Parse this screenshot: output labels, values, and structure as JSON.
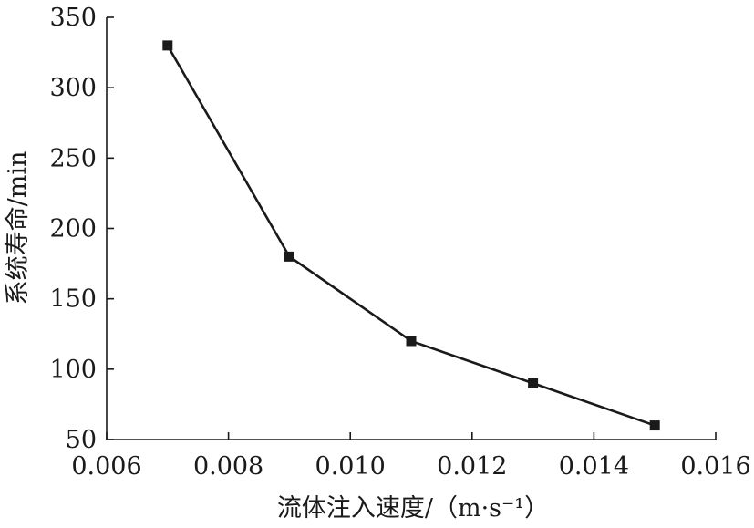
{
  "chart_data": {
    "type": "line",
    "xlabel": "流体注入速度/（m·s⁻¹）",
    "ylabel": "系统寿命/min",
    "xlim": [
      0.006,
      0.016
    ],
    "ylim": [
      50,
      350
    ],
    "x_ticks": [
      0.006,
      0.008,
      0.01,
      0.012,
      0.014,
      0.016
    ],
    "x_tick_labels": [
      "0.006",
      "0.008",
      "0.010",
      "0.012",
      "0.014",
      "0.016"
    ],
    "y_ticks": [
      50,
      100,
      150,
      200,
      250,
      300,
      350
    ],
    "y_tick_labels": [
      "50",
      "100",
      "150",
      "200",
      "250",
      "300",
      "350"
    ],
    "grid": false,
    "series": [
      {
        "x": [
          0.007,
          0.009,
          0.011,
          0.013,
          0.015
        ],
        "y": [
          330,
          180,
          120,
          90,
          60
        ],
        "color": "#1a1a1a",
        "marker": "square"
      }
    ]
  }
}
